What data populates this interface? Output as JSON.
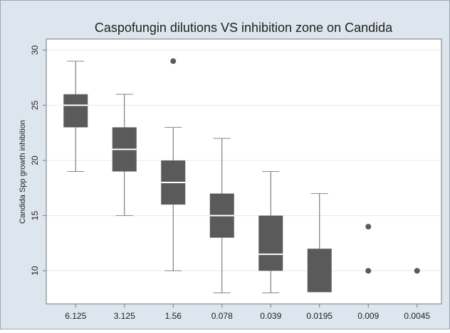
{
  "chart_data": {
    "type": "box",
    "title": "Caspofungin dilutions VS inhibition zone on Candida",
    "y_label": "Candida Spp growth inhibition",
    "categories": [
      "6.125",
      "3.125",
      "1.56",
      "0.078",
      "0.039",
      "0.0195",
      "0.009",
      "0.0045"
    ],
    "boxes": [
      {
        "min": 19,
        "q1": 23,
        "median": 25,
        "q3": 26,
        "max": 29,
        "outliers": []
      },
      {
        "min": 15,
        "q1": 19,
        "median": 21,
        "q3": 23,
        "max": 26,
        "outliers": []
      },
      {
        "min": 10,
        "q1": 16,
        "median": 18,
        "q3": 20,
        "max": 23,
        "outliers": [
          29
        ]
      },
      {
        "min": 8,
        "q1": 13,
        "median": 15,
        "q3": 17,
        "max": 22,
        "outliers": []
      },
      {
        "min": 8,
        "q1": 10,
        "median": 11.5,
        "q3": 15,
        "max": 19,
        "outliers": []
      },
      {
        "min": 8,
        "q1": 8,
        "median": 8,
        "q3": 12,
        "max": 17,
        "outliers": []
      },
      {
        "min": 8,
        "q1": 8,
        "median": 8,
        "q3": 8,
        "max": 8,
        "outliers": [
          10,
          14
        ]
      },
      {
        "min": 8,
        "q1": 8,
        "median": 8,
        "q3": 8,
        "max": 8,
        "outliers": [
          10
        ]
      }
    ],
    "color": "#5a5a5a",
    "ylim": [
      7,
      31
    ],
    "yticks": [
      10,
      15,
      20,
      25,
      30
    ],
    "grid": true
  }
}
